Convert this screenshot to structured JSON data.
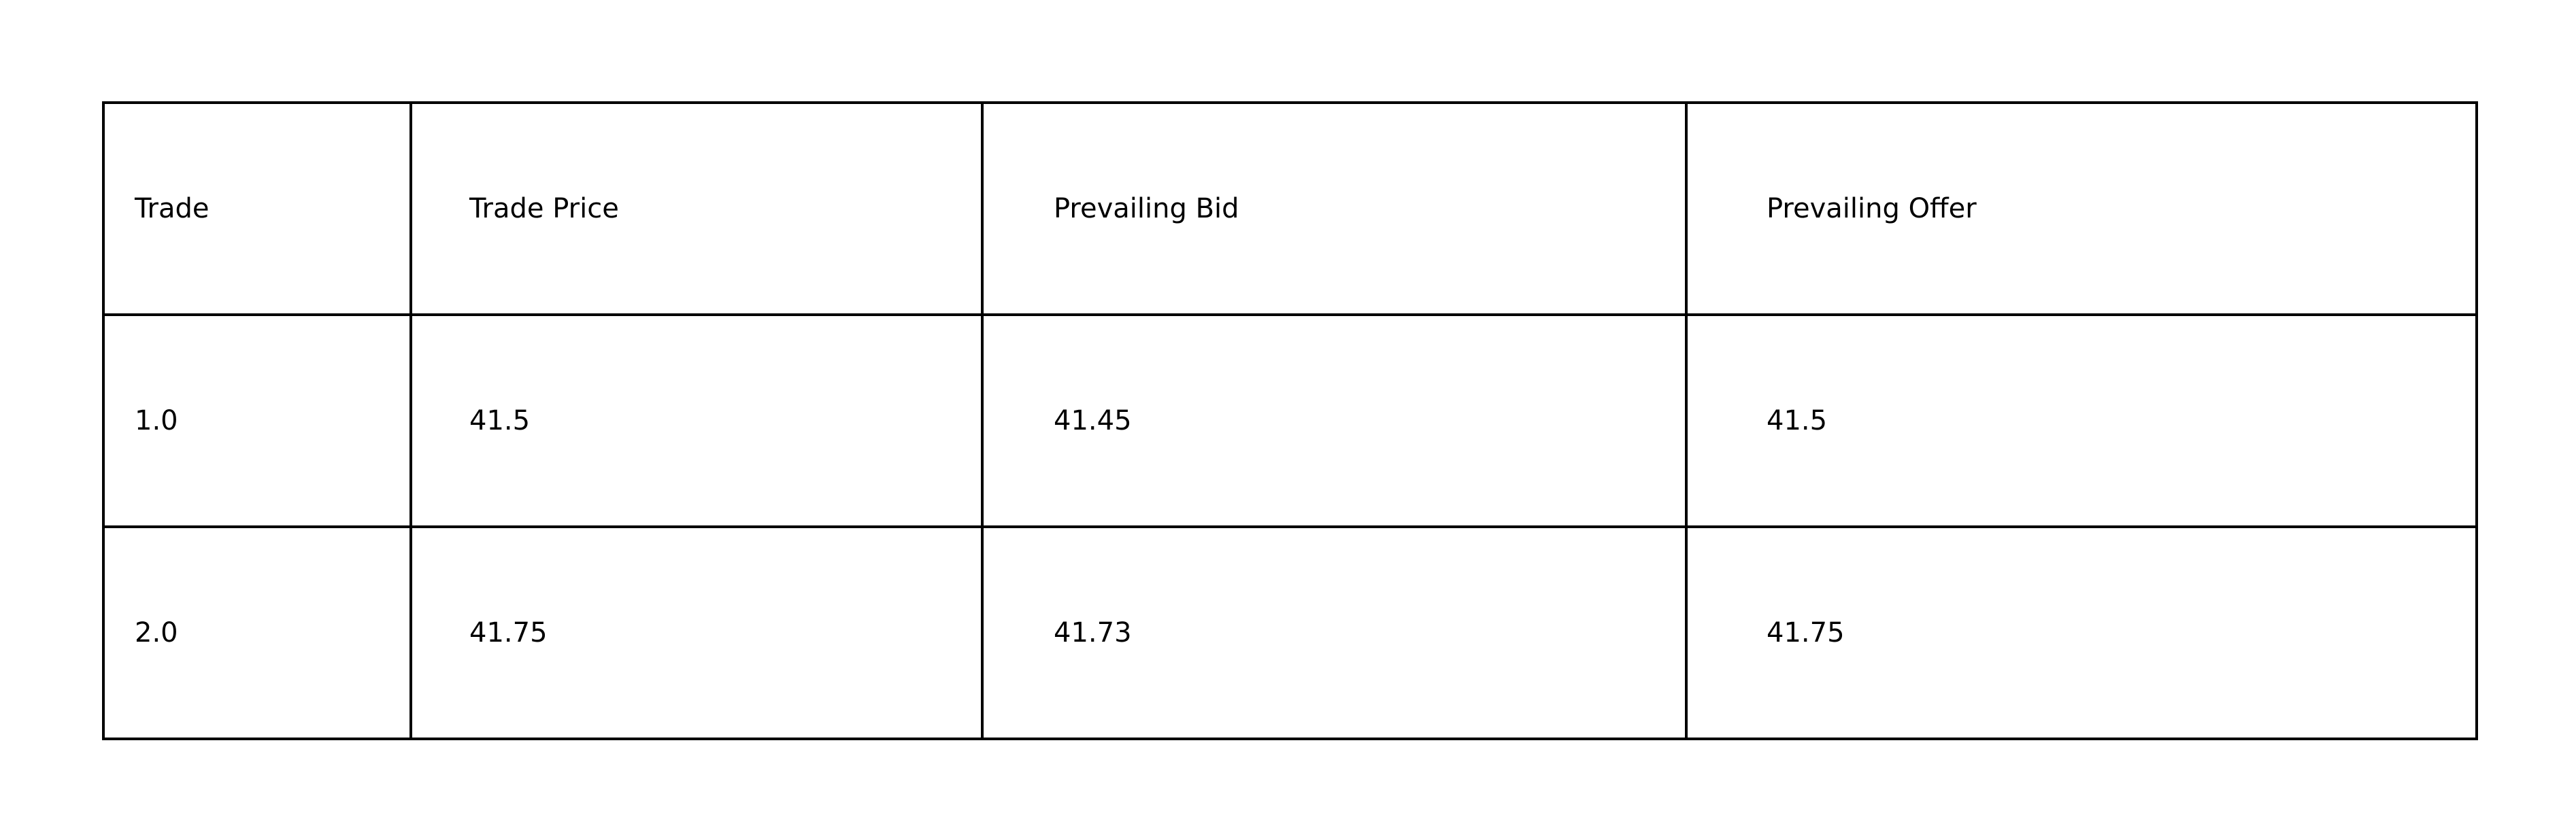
{
  "chart_data": {
    "type": "table",
    "columns": [
      "Trade",
      "Trade Price",
      "Prevailing Bid",
      "Prevailing Offer"
    ],
    "rows": [
      [
        "1.0",
        "41.5",
        "41.45",
        "41.5"
      ],
      [
        "2.0",
        "41.75",
        "41.73",
        "41.75"
      ]
    ]
  },
  "colors": {
    "border": "#000000",
    "background": "#ffffff",
    "text": "#000000"
  }
}
